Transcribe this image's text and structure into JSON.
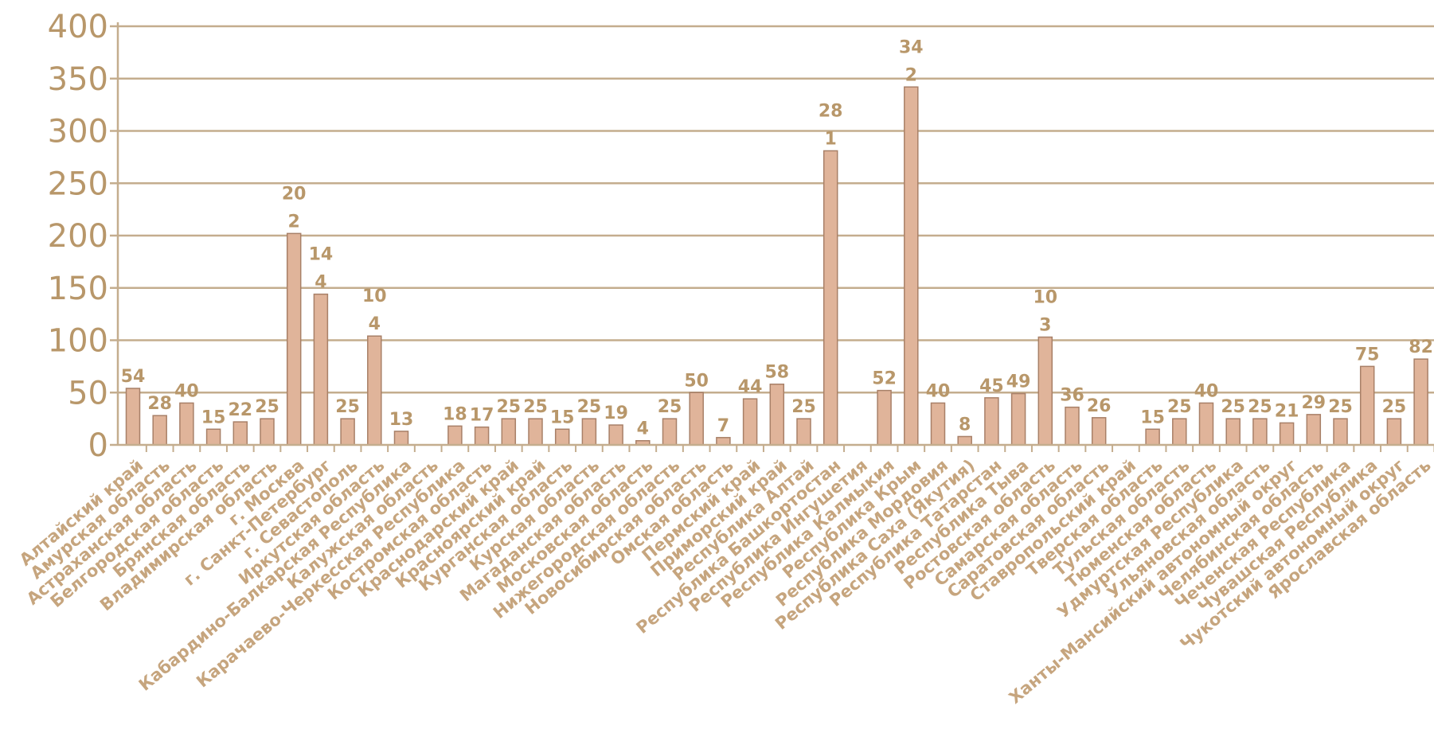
{
  "chart_data": {
    "type": "bar",
    "categories": [
      "Алтайский край",
      "Амурская область",
      "Астраханская область",
      "Белгородская область",
      "Брянская область",
      "Владимирская область",
      "г. Москва",
      "г. Санкт-Петербург",
      "г. Севастополь",
      "Иркутская область",
      "Кабардино-Балкарская Республика",
      "Калужская область",
      "Карачаево-Черкесская Республика",
      "Костромская область",
      "Краснодарский край",
      "Красноярский край",
      "Курганская область",
      "Курская область",
      "Магаданская область",
      "Московская область",
      "Нижегородская область",
      "Новосибирская область",
      "Омская область",
      "Пермский край",
      "Приморский край",
      "Республика Алтай",
      "Республика Башкортостан",
      "Республика Ингушетия",
      "Республика Калмыкия",
      "Республика Крым",
      "Республика Мордовия",
      "Республика Саха (Якутия)",
      "Республика Татарстан",
      "Республика Тыва",
      "Ростовская область",
      "Самарская область",
      "Саратовская область",
      "Ставропольский край",
      "Тверская область",
      "Тульская область",
      "Тюменская область",
      "Удмуртская Республика",
      "Ульяновская область",
      "Ханты-Мансийский автономный округ",
      "Челябинская область",
      "Чеченская Республика",
      "Чувашская Республика",
      "Чукотский автономный округ",
      "Ярославская область"
    ],
    "values": [
      54,
      28,
      40,
      15,
      22,
      25,
      202,
      144,
      25,
      104,
      13,
      0,
      18,
      17,
      25,
      25,
      15,
      25,
      19,
      4,
      25,
      50,
      7,
      44,
      58,
      25,
      281,
      0,
      52,
      342,
      40,
      8,
      45,
      49,
      103,
      36,
      26,
      0,
      15,
      25,
      40,
      25,
      25,
      21,
      29,
      25,
      75,
      25,
      82
    ],
    "value_labels": [
      "54",
      "28",
      "40",
      "15",
      "22",
      "25",
      "20\n2",
      "14\n4",
      "25",
      "10\n4",
      "13",
      "",
      "18",
      "17",
      "25",
      "25",
      "15",
      "25",
      "19",
      "4",
      "25",
      "50",
      "7",
      "44",
      "58",
      "25",
      "28\n1",
      "",
      "52",
      "34\n2",
      "40",
      "8",
      "45",
      "49",
      "10\n3",
      "36",
      "26",
      "",
      "15",
      "25",
      "40",
      "25",
      "25",
      "21",
      "29",
      "25",
      "75",
      "25",
      "82"
    ],
    "ylim": [
      0,
      400
    ],
    "yticks": [
      "0",
      "50",
      "100",
      "150",
      "200",
      "250",
      "300",
      "350",
      "400"
    ],
    "grid": true,
    "colors": {
      "bar": "#e0b49a",
      "bar_edge": "#a88068",
      "grid": "#c4ad8e",
      "text": "#b8976a",
      "axis_label": "#c6a57e"
    }
  }
}
